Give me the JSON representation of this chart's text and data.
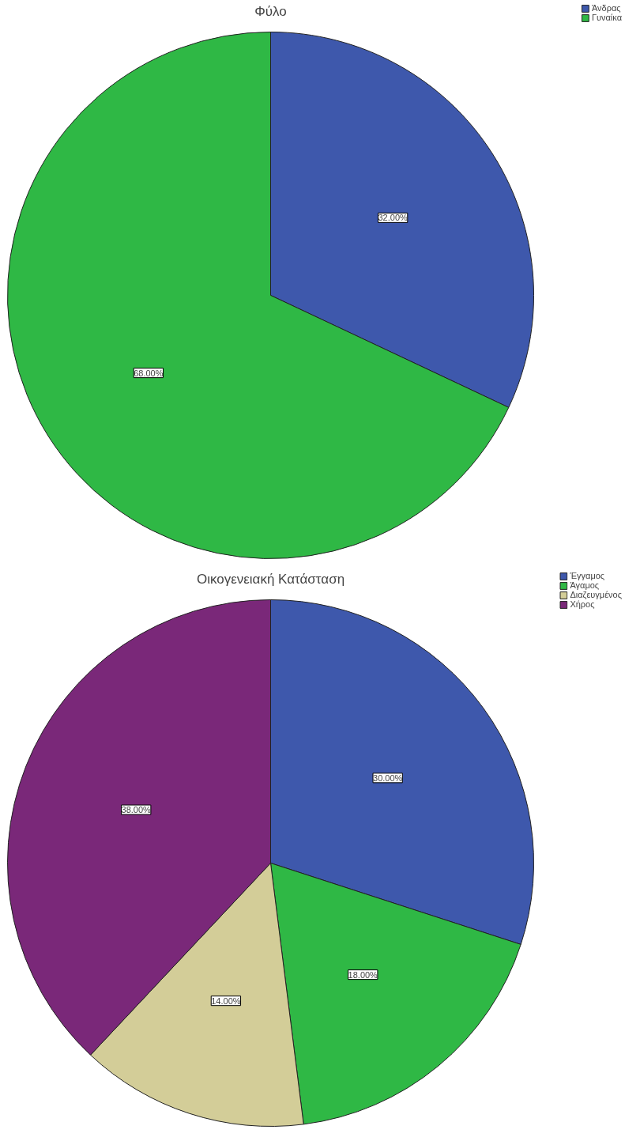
{
  "chart_data": [
    {
      "type": "pie",
      "title": "Φύλο",
      "categories": [
        "Άνδρας",
        "Γυναίκα"
      ],
      "values": [
        32,
        68
      ],
      "colors": [
        "#3e58ac",
        "#2fb845"
      ],
      "value_labels": [
        "32.00%",
        "68.00%"
      ],
      "legend": "top right"
    },
    {
      "type": "pie",
      "title": "Οικογενειακή Κατάσταση",
      "categories": [
        "Έγγαμος",
        "Άγαμος",
        "Διαζευγμένος",
        "Χήρος"
      ],
      "values": [
        30,
        18,
        14,
        38
      ],
      "colors": [
        "#3e58ac",
        "#2fb845",
        "#d3cd98",
        "#7a2879"
      ],
      "value_labels": [
        "30.00%",
        "18.00%",
        "14.00%",
        "38.00%"
      ],
      "legend": "top right"
    }
  ]
}
